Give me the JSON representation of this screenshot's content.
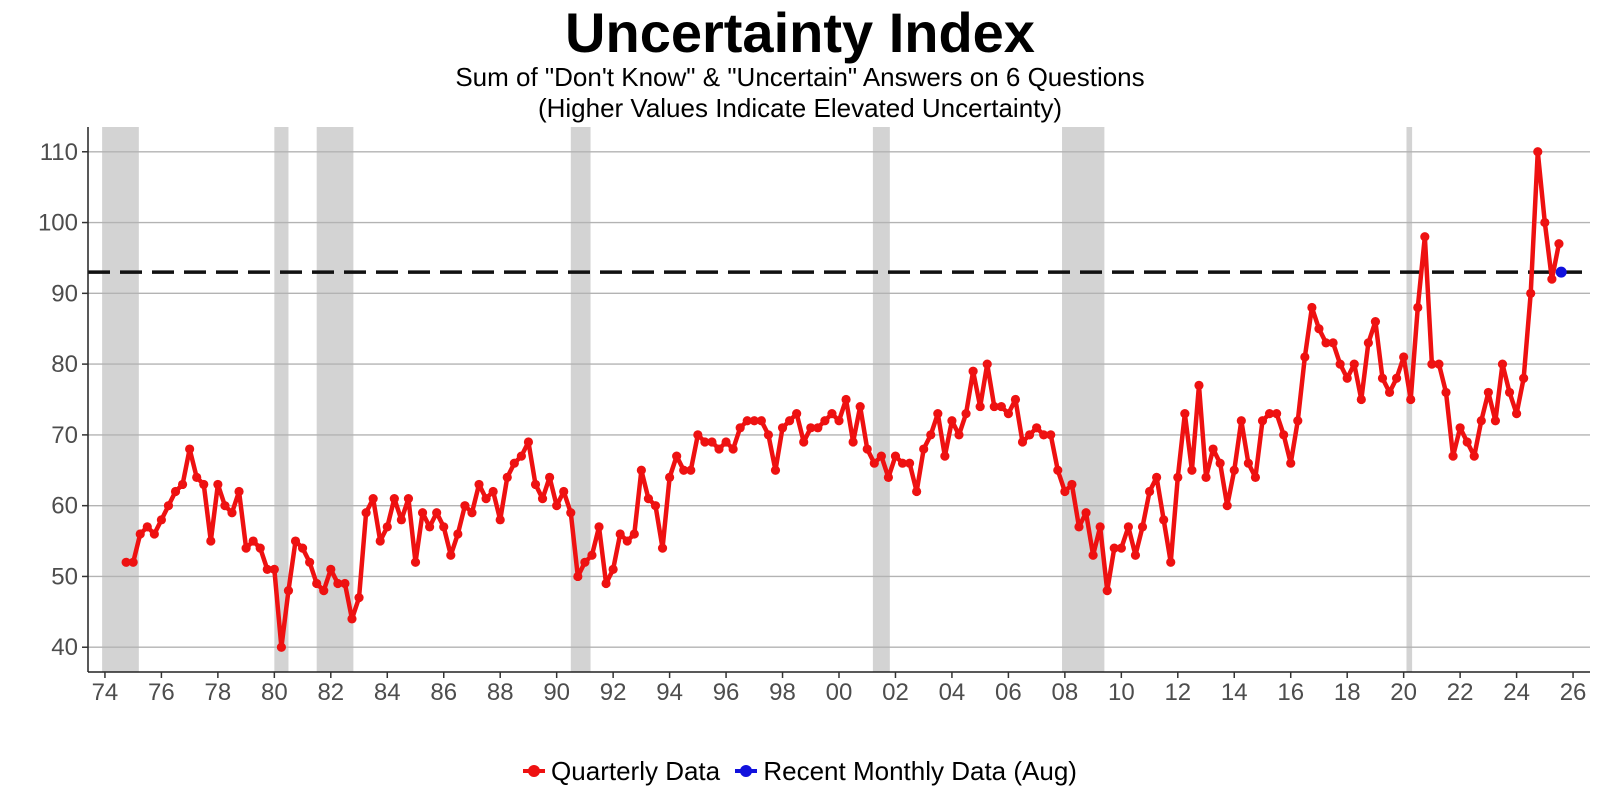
{
  "title": "Uncertainty Index",
  "subtitle_line1": "Sum of \"Don't Know\" & \"Uncertain\" Answers on 6 Questions",
  "subtitle_line2": "(Higher Values Indicate Elevated Uncertainty)",
  "legend": {
    "quarterly_label": "Quarterly Data",
    "monthly_label": "Recent Monthly Data (Aug)"
  },
  "colors": {
    "quarterly": "#ee1111",
    "monthly": "#1111dd",
    "recession": "#d3d3d3",
    "grid": "#b3b3b3",
    "reference_line": "#111111"
  },
  "chart_data": {
    "type": "line",
    "title": "Uncertainty Index",
    "subtitle": "Sum of \"Don't Know\" & \"Uncertain\" Answers on 6 Questions (Higher Values Indicate Elevated Uncertainty)",
    "xlabel": "",
    "ylabel": "",
    "xlim": [
      1973.4,
      2026.6
    ],
    "ylim": [
      36.5,
      113.5
    ],
    "x_ticks": [
      1974,
      1976,
      1978,
      1980,
      1982,
      1984,
      1986,
      1988,
      1990,
      1992,
      1994,
      1996,
      1998,
      2000,
      2002,
      2004,
      2006,
      2008,
      2010,
      2012,
      2014,
      2016,
      2018,
      2020,
      2022,
      2024,
      2026
    ],
    "x_tick_labels": [
      "74",
      "76",
      "78",
      "80",
      "82",
      "84",
      "86",
      "88",
      "90",
      "92",
      "94",
      "96",
      "98",
      "00",
      "02",
      "04",
      "06",
      "08",
      "10",
      "12",
      "14",
      "16",
      "18",
      "20",
      "22",
      "24",
      "26"
    ],
    "y_ticks": [
      40,
      50,
      60,
      70,
      80,
      90,
      100,
      110
    ],
    "y_tick_labels": [
      "40",
      "50",
      "60",
      "70",
      "80",
      "90",
      "100",
      "110"
    ],
    "grid": "horizontal",
    "legend_position": "bottom",
    "reference_line": {
      "y": 93,
      "style": "dashed"
    },
    "recessions": [
      [
        1973.9,
        1975.2
      ],
      [
        1980.0,
        1980.5
      ],
      [
        1981.5,
        1982.8
      ],
      [
        1990.5,
        1991.2
      ],
      [
        2001.2,
        2001.8
      ],
      [
        2007.9,
        2009.4
      ],
      [
        2020.1,
        2020.3
      ]
    ],
    "series": [
      {
        "name": "Quarterly Data",
        "x_start": 1974.75,
        "x_step": 0.25,
        "values": [
          52,
          52,
          56,
          57,
          56,
          58,
          60,
          62,
          63,
          68,
          64,
          63,
          55,
          63,
          60,
          59,
          62,
          54,
          55,
          54,
          51,
          51,
          40,
          48,
          55,
          54,
          52,
          49,
          48,
          51,
          49,
          49,
          44,
          47,
          59,
          61,
          55,
          57,
          61,
          58,
          61,
          52,
          59,
          57,
          59,
          57,
          53,
          56,
          60,
          59,
          63,
          61,
          62,
          58,
          64,
          66,
          67,
          69,
          63,
          61,
          64,
          60,
          62,
          59,
          50,
          52,
          53,
          57,
          49,
          51,
          56,
          55,
          56,
          65,
          61,
          60,
          54,
          64,
          67,
          65,
          65,
          70,
          69,
          69,
          68,
          69,
          68,
          71,
          72,
          72,
          72,
          70,
          65,
          71,
          72,
          73,
          69,
          71,
          71,
          72,
          73,
          72,
          75,
          69,
          74,
          68,
          66,
          67,
          64,
          67,
          66,
          66,
          62,
          68,
          70,
          73,
          67,
          72,
          70,
          73,
          79,
          74,
          80,
          74,
          74,
          73,
          75,
          69,
          70,
          71,
          70,
          70,
          65,
          62,
          63,
          57,
          59,
          53,
          57,
          48,
          54,
          54,
          57,
          53,
          57,
          62,
          64,
          58,
          52,
          64,
          73,
          65,
          77,
          64,
          68,
          66,
          60,
          65,
          72,
          66,
          64,
          72,
          73,
          73,
          70,
          66,
          72,
          81,
          88,
          85,
          83,
          83,
          80,
          78,
          80,
          75,
          83,
          86,
          78,
          76,
          78,
          81,
          75,
          88,
          98,
          80,
          80,
          76,
          67,
          71,
          69,
          67,
          72,
          76,
          72,
          80,
          76,
          73,
          78,
          90,
          110,
          100,
          92,
          97
        ]
      },
      {
        "name": "Recent Monthly Data (Aug)",
        "x": [
          2025.58
        ],
        "values": [
          93
        ]
      }
    ]
  }
}
